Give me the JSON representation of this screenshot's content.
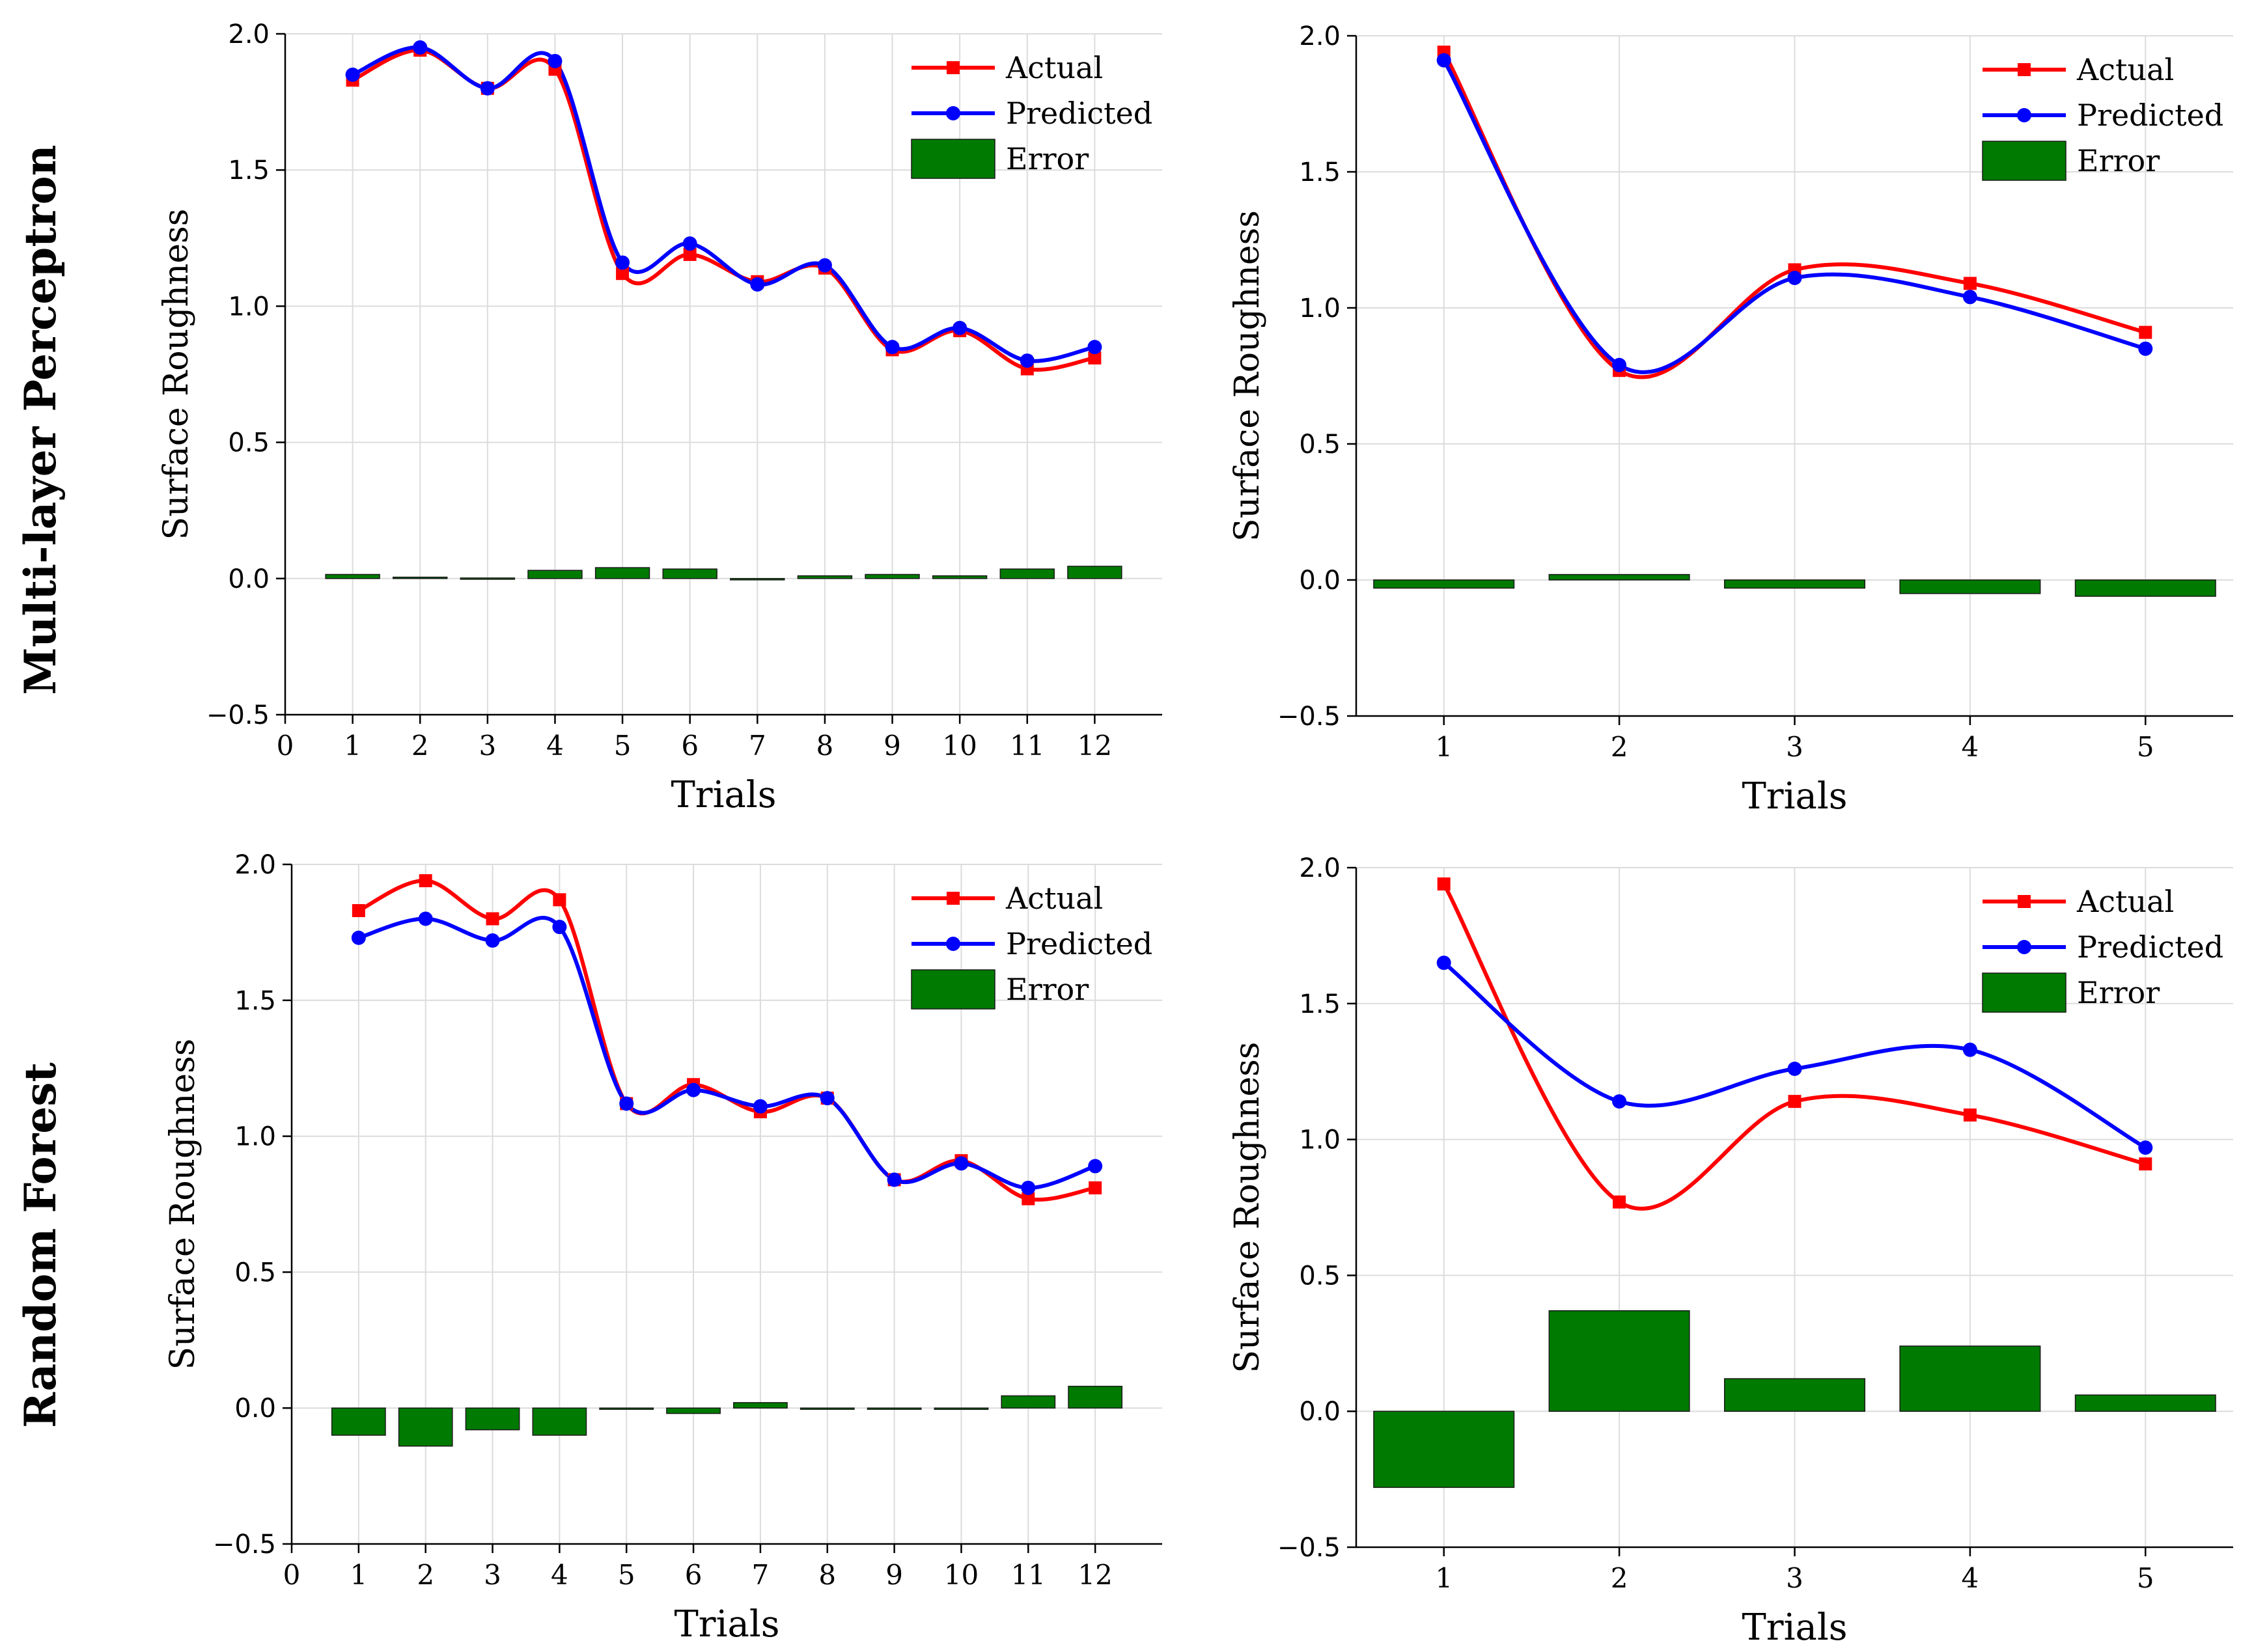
{
  "row_labels": [
    "Multi-layer Perceptron",
    "Random Forest"
  ],
  "colors": {
    "actual": "#ff0000",
    "predicted": "#0000ff",
    "error": "#007a00",
    "grid": "#dcdcdc",
    "axis": "#000000"
  },
  "chart_data": [
    {
      "type": "line",
      "model": "Multi-layer Perceptron",
      "xlabel": "Trials",
      "ylabel": "Surface Roughness",
      "xlim": [
        0,
        13
      ],
      "xticks": [
        0,
        1,
        2,
        3,
        4,
        5,
        6,
        7,
        8,
        9,
        10,
        11,
        12
      ],
      "ylim": [
        -0.5,
        2.0
      ],
      "yticks": [
        -0.5,
        0.0,
        0.5,
        1.0,
        1.5,
        2.0
      ],
      "grid": true,
      "legend_position": "top-right",
      "x": [
        1,
        2,
        3,
        4,
        5,
        6,
        7,
        8,
        9,
        10,
        11,
        12
      ],
      "series": [
        {
          "name": "Actual",
          "kind": "line",
          "marker": "square",
          "values": [
            1.83,
            1.94,
            1.8,
            1.87,
            1.12,
            1.19,
            1.09,
            1.14,
            0.84,
            0.91,
            0.77,
            0.81
          ]
        },
        {
          "name": "Predicted",
          "kind": "line",
          "marker": "circle",
          "values": [
            1.85,
            1.95,
            1.8,
            1.9,
            1.16,
            1.23,
            1.08,
            1.15,
            0.85,
            0.92,
            0.8,
            0.85
          ]
        },
        {
          "name": "Error",
          "kind": "bar",
          "values": [
            0.015,
            0.005,
            0.002,
            0.03,
            0.04,
            0.035,
            -0.005,
            0.01,
            0.015,
            0.01,
            0.035,
            0.045
          ]
        }
      ]
    },
    {
      "type": "line",
      "model": "Multi-layer Perceptron",
      "xlabel": "Trials",
      "ylabel": "Surface Roughness",
      "xlim": [
        0.5,
        5.5
      ],
      "xticks": [
        1,
        2,
        3,
        4,
        5
      ],
      "ylim": [
        -0.5,
        2.0
      ],
      "yticks": [
        -0.5,
        0.0,
        0.5,
        1.0,
        1.5,
        2.0
      ],
      "grid": true,
      "legend_position": "top-right",
      "x": [
        1,
        2,
        3,
        4,
        5
      ],
      "series": [
        {
          "name": "Actual",
          "kind": "line",
          "marker": "square",
          "values": [
            1.94,
            0.77,
            1.14,
            1.09,
            0.91
          ]
        },
        {
          "name": "Predicted",
          "kind": "line",
          "marker": "circle",
          "values": [
            1.91,
            0.79,
            1.11,
            1.04,
            0.85
          ]
        },
        {
          "name": "Error",
          "kind": "bar",
          "values": [
            -0.03,
            0.02,
            -0.03,
            -0.05,
            -0.06
          ]
        }
      ]
    },
    {
      "type": "line",
      "model": "Random Forest",
      "xlabel": "Trials",
      "ylabel": "Surface Roughness",
      "xlim": [
        0,
        13
      ],
      "xticks": [
        0,
        1,
        2,
        3,
        4,
        5,
        6,
        7,
        8,
        9,
        10,
        11,
        12
      ],
      "ylim": [
        -0.5,
        2.0
      ],
      "yticks": [
        -0.5,
        0.0,
        0.5,
        1.0,
        1.5,
        2.0
      ],
      "grid": true,
      "legend_position": "top-right",
      "x": [
        1,
        2,
        3,
        4,
        5,
        6,
        7,
        8,
        9,
        10,
        11,
        12
      ],
      "series": [
        {
          "name": "Actual",
          "kind": "line",
          "marker": "square",
          "values": [
            1.83,
            1.94,
            1.8,
            1.87,
            1.12,
            1.19,
            1.09,
            1.14,
            0.84,
            0.91,
            0.77,
            0.81
          ]
        },
        {
          "name": "Predicted",
          "kind": "line",
          "marker": "circle",
          "values": [
            1.73,
            1.8,
            1.72,
            1.77,
            1.12,
            1.17,
            1.11,
            1.14,
            0.84,
            0.9,
            0.81,
            0.89
          ]
        },
        {
          "name": "Error",
          "kind": "bar",
          "values": [
            -0.1,
            -0.14,
            -0.08,
            -0.1,
            -0.003,
            -0.02,
            0.02,
            -0.003,
            0.0,
            -0.005,
            0.045,
            0.08
          ]
        }
      ]
    },
    {
      "type": "line",
      "model": "Random Forest",
      "xlabel": "Trials",
      "ylabel": "Surface Roughness",
      "xlim": [
        0.5,
        5.5
      ],
      "xticks": [
        1,
        2,
        3,
        4,
        5
      ],
      "ylim": [
        -0.5,
        2.0
      ],
      "yticks": [
        -0.5,
        0.0,
        0.5,
        1.0,
        1.5,
        2.0
      ],
      "grid": true,
      "legend_position": "top-right",
      "x": [
        1,
        2,
        3,
        4,
        5
      ],
      "series": [
        {
          "name": "Actual",
          "kind": "line",
          "marker": "square",
          "values": [
            1.94,
            0.77,
            1.14,
            1.09,
            0.91
          ]
        },
        {
          "name": "Predicted",
          "kind": "line",
          "marker": "circle",
          "values": [
            1.65,
            1.14,
            1.26,
            1.33,
            0.97
          ]
        },
        {
          "name": "Error",
          "kind": "bar",
          "values": [
            -0.28,
            0.37,
            0.12,
            0.24,
            0.06
          ]
        }
      ]
    }
  ]
}
